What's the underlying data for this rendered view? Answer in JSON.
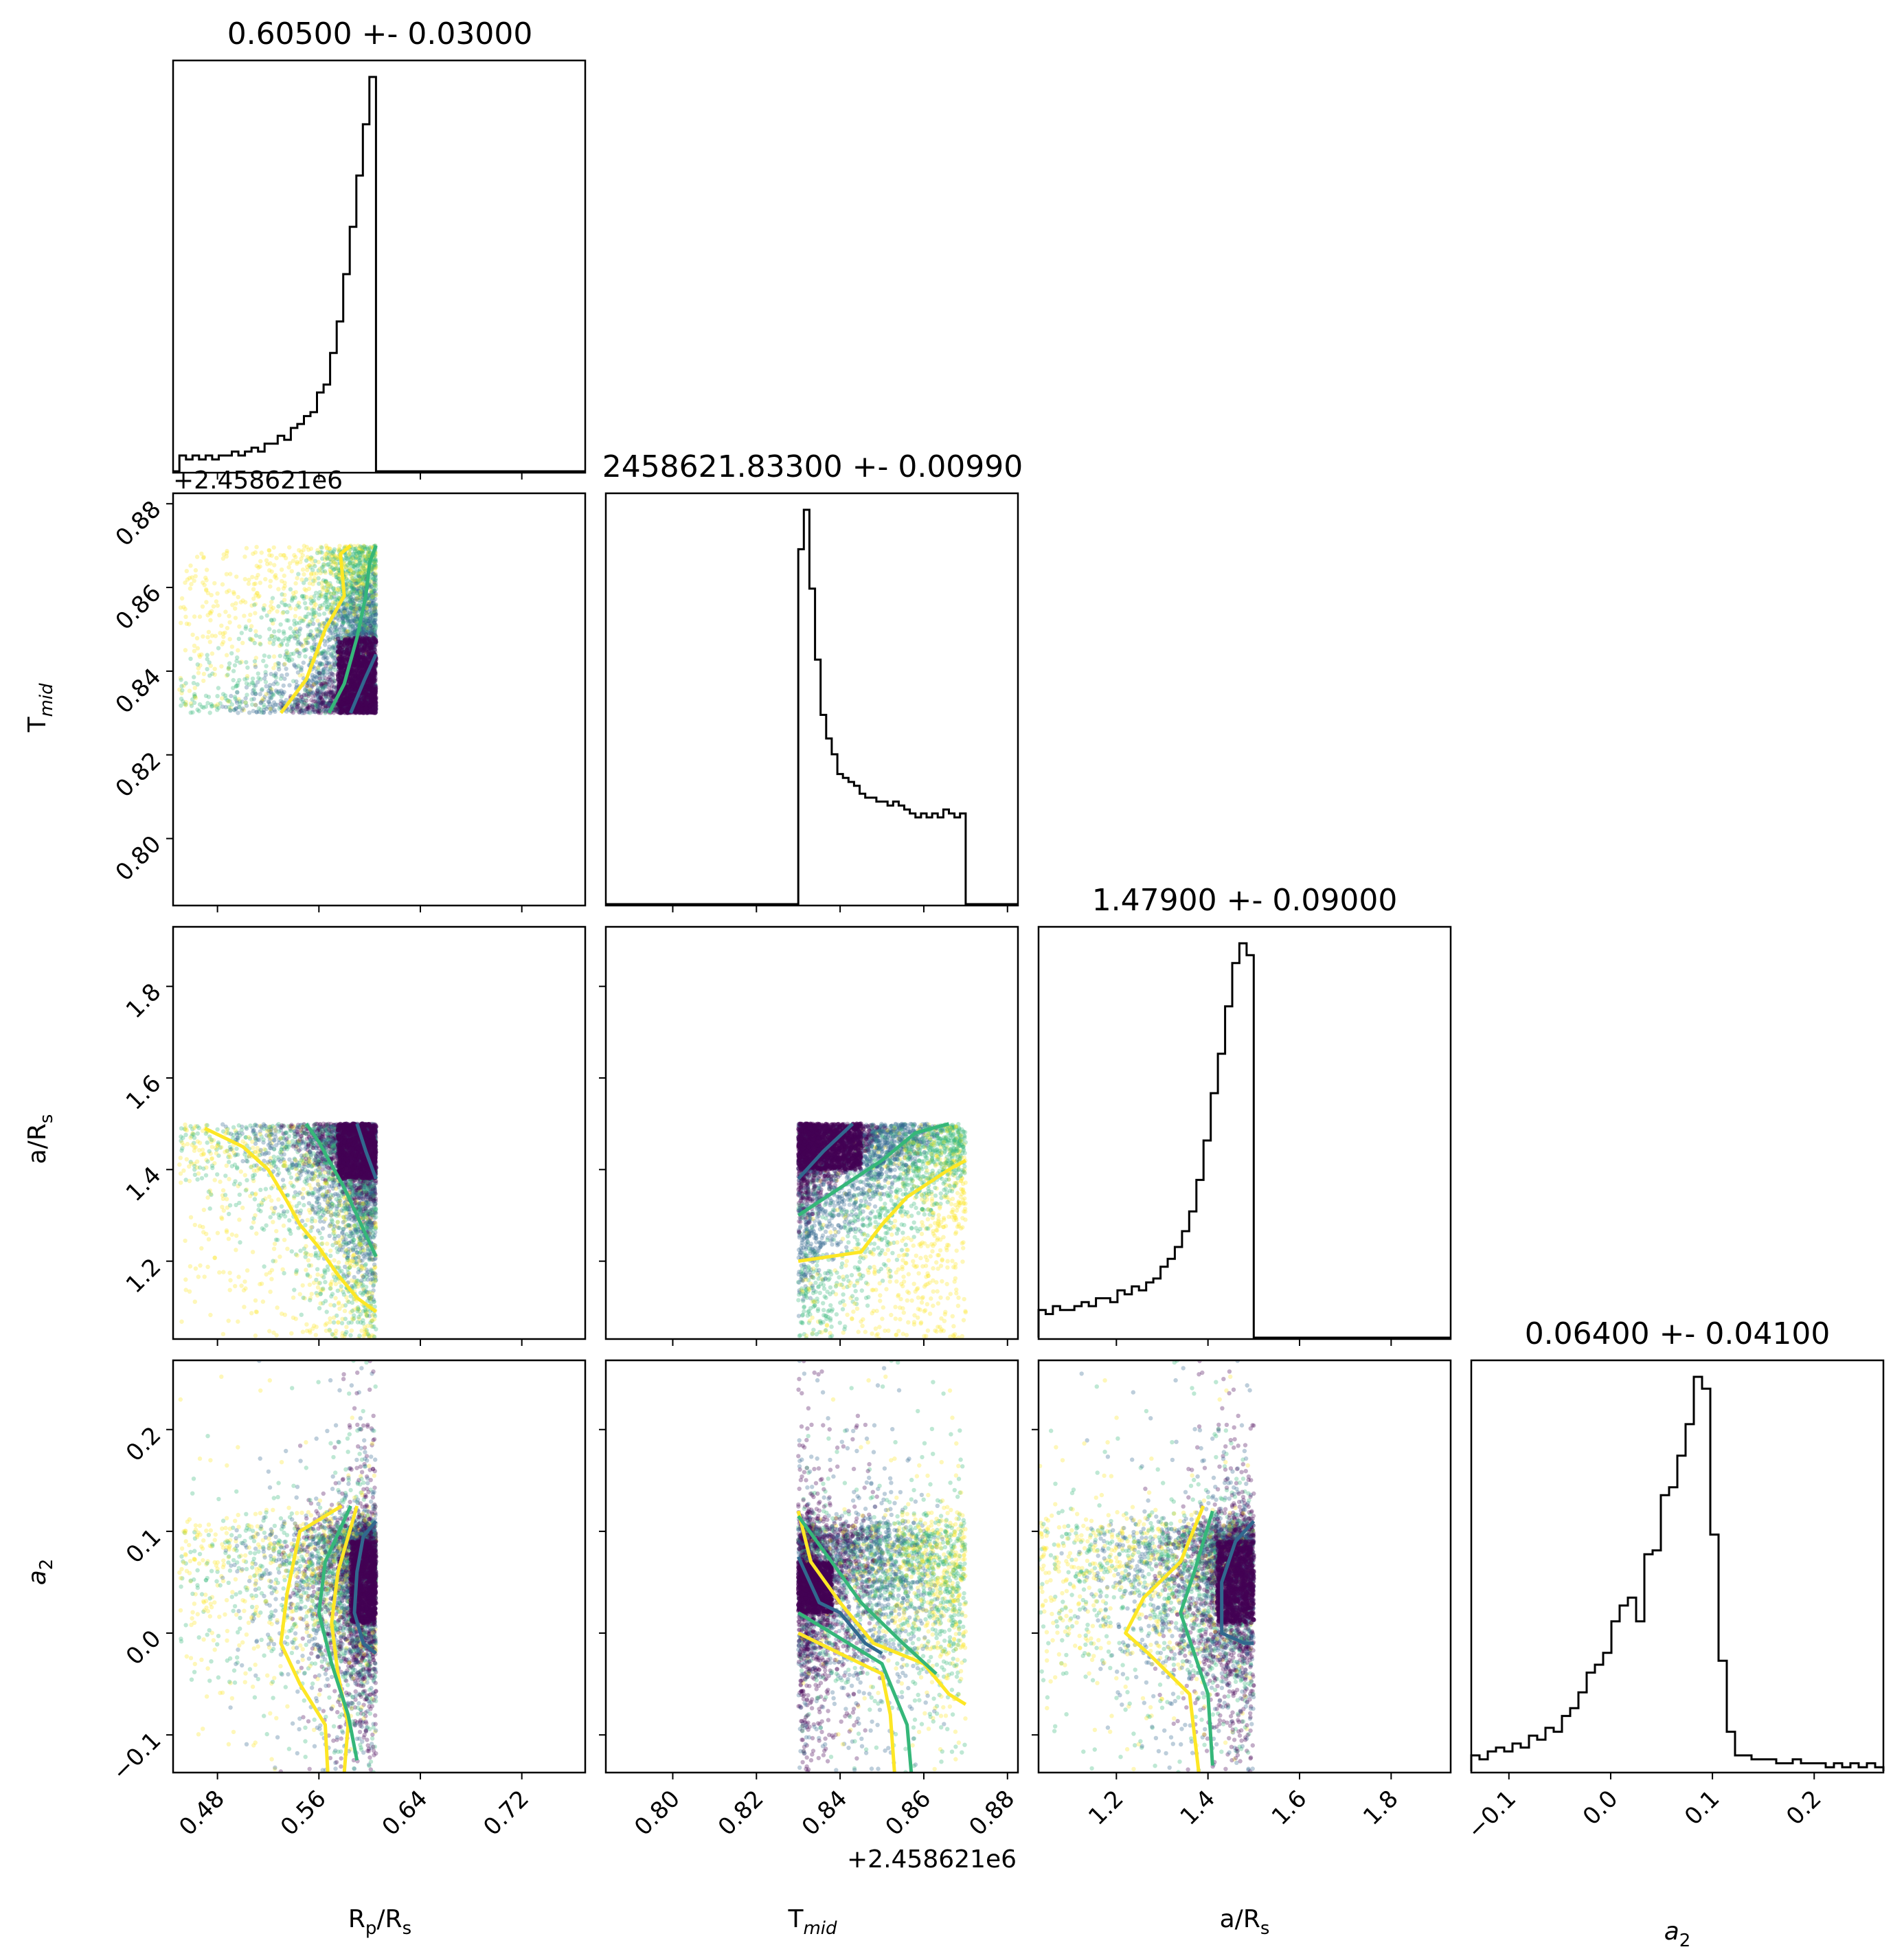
{
  "chart_data": {
    "type": "corner",
    "parameters": [
      {
        "label": "R_p/R_s",
        "title": "0.60500 +- 0.03000",
        "range": [
          0.445,
          0.77
        ],
        "ticks": [
          0.48,
          0.56,
          0.64,
          0.72
        ],
        "tick_labels": [
          "0.48",
          "0.56",
          "0.64",
          "0.72"
        ]
      },
      {
        "label": "T_mid",
        "title": "2458621.83300 +- 0.00990",
        "range": [
          0.784,
          0.8825
        ],
        "ticks": [
          0.8,
          0.82,
          0.84,
          0.86,
          0.88
        ],
        "tick_labels": [
          "0.80",
          "0.82",
          "0.84",
          "0.86",
          "0.88"
        ],
        "offset": "+2.458621e6"
      },
      {
        "label": "a/R_s",
        "title": "1.47900 +- 0.09000",
        "range": [
          1.03,
          1.93
        ],
        "ticks": [
          1.2,
          1.4,
          1.6,
          1.8
        ],
        "tick_labels": [
          "1.2",
          "1.4",
          "1.6",
          "1.8"
        ]
      },
      {
        "label": "a_2",
        "title": "0.06400 +- 0.04100",
        "range": [
          -0.137,
          0.268
        ],
        "ticks": [
          -0.1,
          0.0,
          0.1,
          0.2
        ],
        "tick_labels": [
          "−0.1",
          "0.0",
          "0.1",
          "0.2"
        ]
      }
    ],
    "axis_labels": {
      "rp": "R",
      "rp_sub": "p",
      "rp_tail": "/R",
      "rs_sub": "s",
      "tmid": "T",
      "tmid_sub": "mid",
      "ars": "a/R",
      "ars_sub": "s",
      "a2": "a",
      "a2_sub": "2"
    },
    "histograms": {
      "R_p/R_s": {
        "edges": [
          0.45,
          0.605
        ],
        "values": [
          0.04,
          0.03,
          0.04,
          0.03,
          0.04,
          0.03,
          0.04,
          0.04,
          0.05,
          0.04,
          0.05,
          0.06,
          0.05,
          0.07,
          0.07,
          0.09,
          0.08,
          0.11,
          0.12,
          0.14,
          0.15,
          0.2,
          0.22,
          0.3,
          0.38,
          0.5,
          0.62,
          0.75,
          0.88,
          1.0
        ]
      },
      "T_mid": {
        "edges": [
          0.83,
          0.87
        ],
        "values": [
          0.9,
          1.0,
          0.8,
          0.62,
          0.48,
          0.42,
          0.38,
          0.33,
          0.32,
          0.31,
          0.3,
          0.28,
          0.27,
          0.27,
          0.26,
          0.26,
          0.25,
          0.26,
          0.25,
          0.24,
          0.23,
          0.22,
          0.23,
          0.22,
          0.23,
          0.22,
          0.24,
          0.23,
          0.22,
          0.23
        ]
      },
      "a/R_s": {
        "edges": [
          1.03,
          1.5
        ],
        "values": [
          0.07,
          0.06,
          0.08,
          0.07,
          0.07,
          0.08,
          0.09,
          0.08,
          0.1,
          0.1,
          0.09,
          0.12,
          0.11,
          0.13,
          0.12,
          0.14,
          0.15,
          0.18,
          0.2,
          0.23,
          0.27,
          0.32,
          0.4,
          0.5,
          0.62,
          0.72,
          0.84,
          0.95,
          1.0,
          0.97
        ]
      },
      "a_2": {
        "edges": [
          -0.137,
          0.268
        ],
        "values": [
          0.04,
          0.03,
          0.05,
          0.06,
          0.05,
          0.07,
          0.06,
          0.09,
          0.08,
          0.11,
          0.1,
          0.14,
          0.16,
          0.2,
          0.25,
          0.27,
          0.3,
          0.38,
          0.42,
          0.44,
          0.38,
          0.55,
          0.56,
          0.7,
          0.72,
          0.8,
          0.88,
          1.0,
          0.97,
          0.6,
          0.28,
          0.1,
          0.04,
          0.04,
          0.03,
          0.03,
          0.03,
          0.02,
          0.02,
          0.03,
          0.02,
          0.02,
          0.02,
          0.01,
          0.02,
          0.01,
          0.02,
          0.01,
          0.02,
          0.01
        ]
      }
    },
    "colors": {
      "line": "#000000",
      "scatter_dense": "#440154",
      "scatter_mid": "#31688e",
      "scatter_mid2": "#35b779",
      "scatter_sparse": "#fde725",
      "contour_inner": "#31688e",
      "contour_mid": "#35b779",
      "contour_outer": "#fde725"
    },
    "grid": false
  }
}
